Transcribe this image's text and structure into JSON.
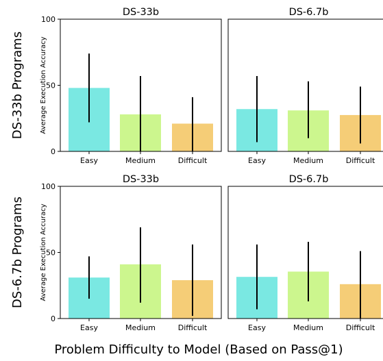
{
  "figure": {
    "xlabel": "Problem Difficulty to Model (Based on Pass@1)",
    "row_labels": [
      "DS-33b Programs",
      "DS-6.7b Programs"
    ],
    "ylabel": "Average Execution Accuracy"
  },
  "colors": {
    "easy": "#7ae8e2",
    "medium": "#ccf68e",
    "difficult": "#f5cd77",
    "error_bar": "#000000",
    "axes": "#000000"
  },
  "chart_data": [
    {
      "type": "bar",
      "title": "DS-33b",
      "row_label": "DS-33b Programs",
      "categories": [
        "Easy",
        "Medium",
        "Difficult"
      ],
      "values": [
        48,
        28,
        21
      ],
      "error_low": [
        22,
        0,
        0
      ],
      "error_high": [
        74,
        57,
        41
      ],
      "ylabel": "Average Execution Accuracy",
      "ylim": [
        0,
        100
      ],
      "yticks": [
        0,
        50,
        100
      ]
    },
    {
      "type": "bar",
      "title": "DS-6.7b",
      "row_label": "DS-33b Programs",
      "categories": [
        "Easy",
        "Medium",
        "Difficult"
      ],
      "values": [
        32,
        31,
        27.5
      ],
      "error_low": [
        7,
        10,
        6
      ],
      "error_high": [
        57,
        53,
        49
      ],
      "ylim": [
        0,
        100
      ]
    },
    {
      "type": "bar",
      "title": "DS-33b",
      "row_label": "DS-6.7b Programs",
      "categories": [
        "Easy",
        "Medium",
        "Difficult"
      ],
      "values": [
        31,
        41,
        29
      ],
      "error_low": [
        15,
        12,
        2
      ],
      "error_high": [
        47,
        69,
        56
      ],
      "ylabel": "Average Execution Accuracy",
      "ylim": [
        0,
        100
      ],
      "yticks": [
        0,
        50,
        100
      ]
    },
    {
      "type": "bar",
      "title": "DS-6.7b",
      "row_label": "DS-6.7b Programs",
      "categories": [
        "Easy",
        "Medium",
        "Difficult"
      ],
      "values": [
        31.5,
        35.5,
        26
      ],
      "error_low": [
        7,
        13,
        0
      ],
      "error_high": [
        56,
        58,
        51
      ],
      "ylim": [
        0,
        100
      ]
    }
  ]
}
